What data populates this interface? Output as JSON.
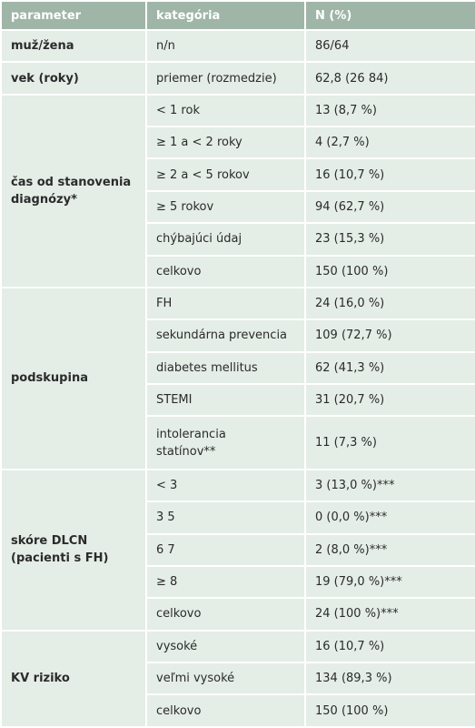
{
  "table": {
    "header": [
      "parameter",
      "kategória",
      "N (%)"
    ],
    "groups": [
      {
        "parameter": "muž/žena",
        "rows": [
          [
            "n/n",
            "86/64"
          ]
        ]
      },
      {
        "parameter": "vek (roky)",
        "rows": [
          [
            "priemer (rozmedzie)",
            "62,8 (26 84)"
          ]
        ]
      },
      {
        "parameter": "čas od stanovenia diagnózy*",
        "rows": [
          [
            "< 1 rok",
            "13 (8,7 %)"
          ],
          [
            "≥ 1 a < 2 roky",
            "4 (2,7 %)"
          ],
          [
            "≥ 2 a < 5 rokov",
            "16 (10,7 %)"
          ],
          [
            "≥ 5 rokov",
            "94 (62,7 %)"
          ],
          [
            "chýbajúci údaj",
            "23 (15,3 %)"
          ],
          [
            "celkovo",
            "150 (100 %)"
          ]
        ]
      },
      {
        "parameter": "podskupina",
        "rows": [
          [
            "FH",
            "24 (16,0 %)"
          ],
          [
            "sekundárna prevencia",
            "109 (72,7 %)"
          ],
          [
            "diabetes mellitus",
            "62 (41,3 %)"
          ],
          [
            "STEMI",
            "31 (20,7 %)"
          ],
          [
            "intolerancia statínov**",
            "11 (7,3 %)"
          ]
        ]
      },
      {
        "parameter": "skóre DLCN (pacienti s FH)",
        "rows": [
          [
            "< 3",
            "3 (13,0 %)***"
          ],
          [
            "3 5",
            "0 (0,0 %)***"
          ],
          [
            "6 7",
            "2 (8,0 %)***"
          ],
          [
            "≥ 8",
            "19 (79,0 %)***"
          ],
          [
            "celkovo",
            "24 (100 %)***"
          ]
        ]
      },
      {
        "parameter": "KV riziko",
        "rows": [
          [
            "vysoké",
            "16 (10,7 %)"
          ],
          [
            "veľmi vysoké",
            "134 (89,3 %)"
          ],
          [
            "celkovo",
            "150 (100 %)"
          ]
        ]
      }
    ]
  }
}
